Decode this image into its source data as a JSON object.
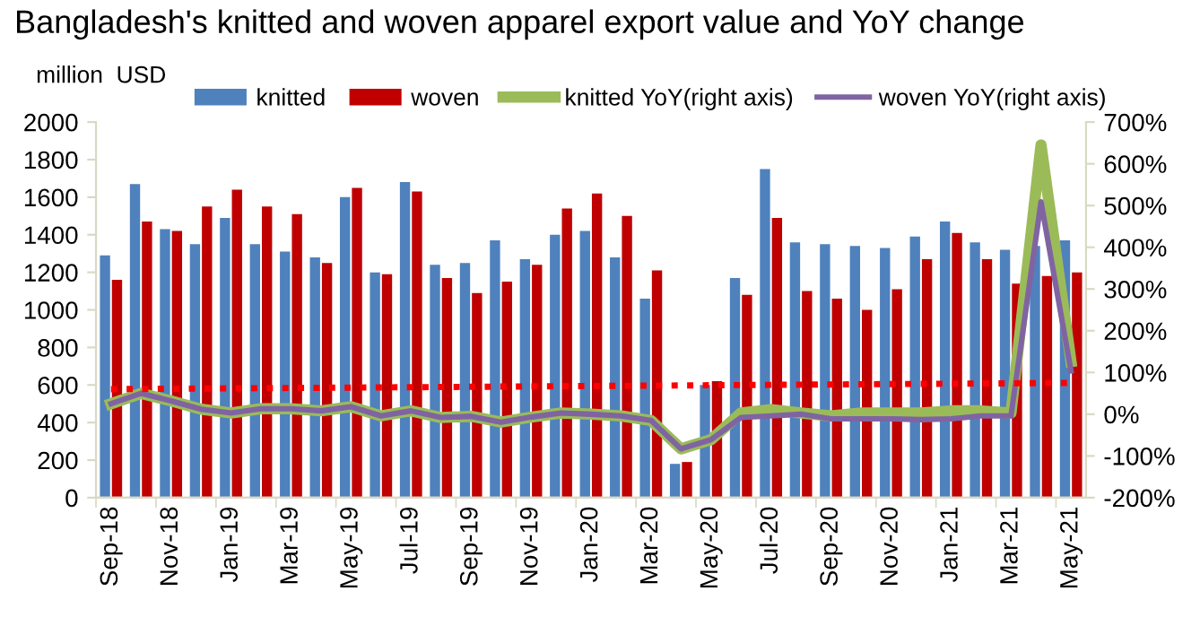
{
  "chart_data": {
    "type": "bar",
    "title": "Bangladesh's knitted and woven apparel export value and YoY change",
    "ylabel": "million  USD",
    "categories": [
      "Sep-18",
      null,
      "Nov-18",
      null,
      "Jan-19",
      null,
      "Mar-19",
      null,
      "May-19",
      null,
      "Jul-19",
      null,
      "Sep-19",
      null,
      "Nov-19",
      null,
      "Jan-20",
      null,
      "Mar-20",
      null,
      "May-20",
      null,
      "Jul-20",
      null,
      "Sep-20",
      null,
      "Nov-20",
      null,
      "Jan-21",
      null,
      "Mar-21",
      null,
      "May-21"
    ],
    "series": [
      {
        "name": "knitted",
        "color": "#4f81bd",
        "values": [
          1290,
          1670,
          1430,
          1350,
          1490,
          1350,
          1310,
          1280,
          1600,
          1200,
          1680,
          1240,
          1250,
          1370,
          1270,
          1400,
          1420,
          1280,
          1060,
          180,
          600,
          1170,
          1750,
          1360,
          1350,
          1340,
          1330,
          1390,
          1470,
          1360,
          1320,
          1340,
          1370
        ]
      },
      {
        "name": "woven",
        "color": "#c00000",
        "values": [
          1160,
          1470,
          1420,
          1550,
          1640,
          1550,
          1510,
          1250,
          1650,
          1190,
          1630,
          1170,
          1090,
          1150,
          1240,
          1540,
          1620,
          1500,
          1210,
          190,
          620,
          1080,
          1490,
          1100,
          1060,
          1000,
          1110,
          1270,
          1410,
          1270,
          1140,
          1180,
          1200
        ]
      },
      {
        "name": "knitted YoY(right axis)",
        "type": "line",
        "axis": "y2",
        "color": "#9bbb59",
        "values": [
          25,
          50,
          32,
          12,
          3,
          13,
          13,
          8,
          18,
          -4,
          8,
          -8,
          -5,
          -19,
          -7,
          3,
          0,
          -4,
          -15,
          -83,
          -61,
          3,
          11,
          3,
          -4,
          3,
          3,
          3,
          8,
          8,
          3,
          645,
          126
        ]
      },
      {
        "name": "woven YoY(right axis)",
        "type": "line",
        "axis": "y2",
        "color": "#8064a2",
        "values": [
          25,
          50,
          32,
          12,
          3,
          13,
          13,
          8,
          18,
          -4,
          8,
          -8,
          -5,
          -19,
          -7,
          3,
          0,
          -4,
          -15,
          -83,
          -61,
          -8,
          -4,
          0,
          -11,
          -11,
          -11,
          -13,
          -11,
          -4,
          -4,
          509,
          104
        ]
      },
      {
        "type": "line",
        "axis": "y2",
        "color": "#ff0000",
        "line_style": "dotted",
        "x": [
          "Sep-18",
          "May-21"
        ],
        "values": [
          60,
          75
        ]
      }
    ],
    "ylim": [
      0,
      2000
    ],
    "yticks": [
      0,
      200,
      400,
      600,
      800,
      1000,
      1200,
      1400,
      1600,
      1800,
      2000
    ],
    "y2lim": [
      -200,
      700
    ],
    "y2ticks": [
      {
        "value": -200,
        "label": "-200%"
      },
      {
        "value": -100,
        "label": "-100%"
      },
      {
        "value": 0,
        "label": "0%"
      },
      {
        "value": 100,
        "label": "100%"
      },
      {
        "value": 200,
        "label": "200%"
      },
      {
        "value": 300,
        "label": "300%"
      },
      {
        "value": 400,
        "label": "400%"
      },
      {
        "value": 500,
        "label": "500%"
      },
      {
        "value": 600,
        "label": "600%"
      },
      {
        "value": 700,
        "label": "700%"
      }
    ],
    "legend": "top",
    "grid": false
  }
}
